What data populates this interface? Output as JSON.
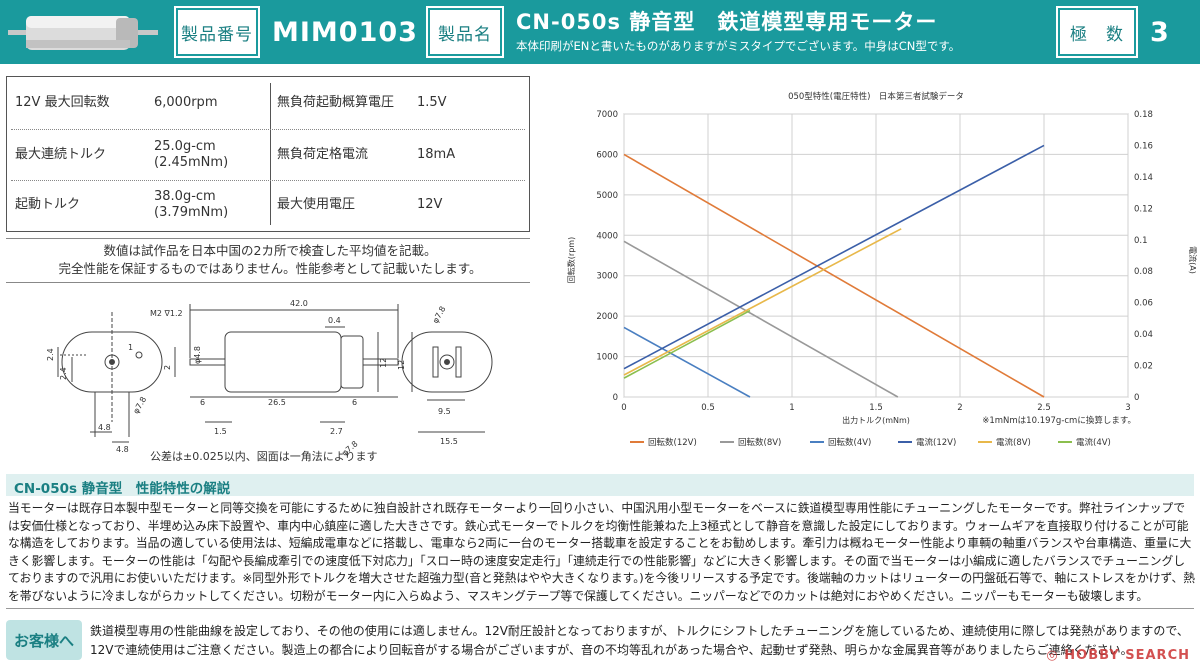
{
  "header": {
    "product_no_label": "製品番号",
    "product_no": "MIM0103",
    "product_name_label": "製品名",
    "product_name": "CN-050s 静音型　鉄道模型専用モーター",
    "product_name_sub": "本体印刷がENと書いたものがありますがミスタイプでございます。中身はCN型です。",
    "poles_label": "極　数",
    "poles": "3"
  },
  "spec": {
    "rows": [
      {
        "k1": "12V 最大回転数",
        "v1": "6,000rpm",
        "k2": "無負荷起動概算電圧",
        "v2": "1.5V"
      },
      {
        "k1": "最大連続トルク",
        "v1": "25.0g-cm",
        "v1b": "(2.45mNm)",
        "k2": "無負荷定格電流",
        "v2": "18mA"
      },
      {
        "k1": "起動トルク",
        "v1": "38.0g-cm",
        "v1b": "(3.79mNm)",
        "k2": "最大使用電圧",
        "v2": "12V"
      }
    ]
  },
  "note": {
    "line1": "数値は試作品を日本中国の2カ所で検査した平均値を記載。",
    "line2": "完全性能を保証するものではありません。性能参考として記載いたします。"
  },
  "drawing": {
    "tolerance": "公差は±0.025以内、図面は一角法によります",
    "dims": {
      "d42": "42.0",
      "d265": "26.5",
      "d6a": "6",
      "d6b": "6",
      "d04": "0.4",
      "d15": "1.5",
      "d27": "2.7",
      "d95": "9.5",
      "d155": "15.5",
      "d48a": "4.8",
      "d48b": "4.8",
      "d24a": "2.4",
      "d24b": "2.4",
      "d12a": "12",
      "d12b": "12",
      "d2": "2",
      "phi48": "φ4.8",
      "phi78a": "φ7.8",
      "phi78b": "φ7.8",
      "m2": "M2 ∇1.2",
      "d1": "1"
    }
  },
  "chart_data": {
    "type": "line",
    "title": "050型特性(電圧特性)　日本第三者試験データ",
    "xlabel": "出力トルク(mNm)",
    "ylabel_left": "回転数(rpm)",
    "ylabel_right": "電流(A)",
    "xlim": [
      0,
      3
    ],
    "ylim_left": [
      0,
      7000
    ],
    "ylim_right": [
      0,
      0.18
    ],
    "x_ticks": [
      "0",
      "0.5",
      "1",
      "1.5",
      "2",
      "2.5",
      "3"
    ],
    "y_ticks_left": [
      "0",
      "1000",
      "2000",
      "3000",
      "4000",
      "5000",
      "6000",
      "7000"
    ],
    "y_ticks_right": [
      "0",
      "0.02",
      "0.04",
      "0.06",
      "0.08",
      "0.1",
      "0.12",
      "0.14",
      "0.16",
      "0.18"
    ],
    "footnote": "※1mNmは10.197g-cmに換算します。",
    "grid": true,
    "legend_position": "bottom",
    "series": [
      {
        "name": "回転数(12V)",
        "axis": "left",
        "color": "#e07b39",
        "points": [
          [
            0,
            6000
          ],
          [
            2.5,
            0
          ]
        ]
      },
      {
        "name": "回転数(8V)",
        "axis": "left",
        "color": "#999999",
        "points": [
          [
            0,
            3850
          ],
          [
            1.63,
            0
          ]
        ]
      },
      {
        "name": "回転数(4V)",
        "axis": "left",
        "color": "#4a7fc1",
        "points": [
          [
            0,
            1720
          ],
          [
            0.75,
            0
          ]
        ]
      },
      {
        "name": "電流(12V)",
        "axis": "right",
        "color": "#3b5fa8",
        "points": [
          [
            0,
            0.018
          ],
          [
            2.5,
            0.16
          ]
        ]
      },
      {
        "name": "電流(8V)",
        "axis": "right",
        "color": "#e8b84a",
        "points": [
          [
            0,
            0.014
          ],
          [
            1.65,
            0.107
          ]
        ]
      },
      {
        "name": "電流(4V)",
        "axis": "right",
        "color": "#8bbf4e",
        "points": [
          [
            0,
            0.012
          ],
          [
            0.75,
            0.055
          ]
        ]
      }
    ],
    "legend": [
      "回転数(12V)",
      "回転数(8V)",
      "回転数(4V)",
      "電流(12V)",
      "電流(8V)",
      "電流(4V)"
    ]
  },
  "section": {
    "title": "CN-050s 静音型　性能特性の解説",
    "text": "当モーターは既存日本製中型モーターと同等交換を可能にするために独自設計され既存モーターより一回り小さい、中国汎用小型モーターをベースに鉄道模型専用性能にチューニングしたモーターです。弊社ラインナップでは安価仕様となっており、半埋め込み床下設置や、車内中心鎮座に適した大きさです。鉄心式モーターでトルクを均衡性能兼ねた上3極式として静音を意識した設定にしております。ウォームギアを直接取り付けることが可能な構造をしております。当品の適している使用法は、短編成電車などに搭載し、電車なら2両に一台のモーター搭載車を設定することをお勧めします。牽引力は概ねモーター性能より車輌の軸重バランスや台車構造、重量に大きく影響します。モーターの性能は「勾配や長編成牽引での速度低下対応力」「スロー時の速度安定走行」「連続走行での性能影響」などに大きく影響します。その面で当モーターは小編成に適したバランスでチューニングしておりますので汎用にお使いいただけます。※同型外形でトルクを増大させた超強力型(音と発熱はやや大きくなります。)を今後リリースする予定です。後端軸のカットはリューターの円盤砥石等で、軸にストレスをかけず、熱を帯びないように冷ましながらカットしてください。切粉がモーター内に入らぬよう、マスキングテープ等で保護してください。ニッパーなどでのカットは絶対におやめください。ニッパーもモーターも破壊します。"
  },
  "customer": {
    "label": "お客様へ",
    "text": "鉄道模型専用の性能曲線を設定しており、その他の使用には適しません。12V耐圧設計となっておりますが、トルクにシフトしたチューニングを施しているため、連続使用に際しては発熱がありますので、12Vで連続使用はご注意ください。製造上の都合により回転音がする場合がございますが、音の不均等乱れがあった場合や、起動せず発熱、明らかな金属異音等がありましたらご連絡ください。"
  },
  "watermark": "HOBBY SEARCH"
}
